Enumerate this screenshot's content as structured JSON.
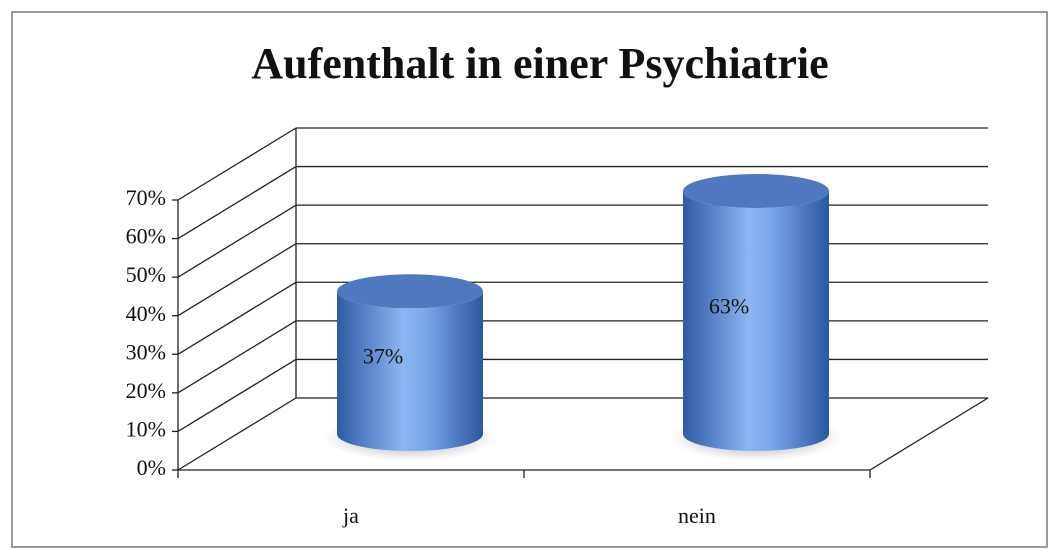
{
  "chart_data": {
    "type": "bar",
    "title": "Aufenthalt in einer Psychiatrie",
    "categories": [
      "ja",
      "nein"
    ],
    "values": [
      37,
      63
    ],
    "value_labels": [
      "37%",
      "63%"
    ],
    "color": "#5b8fd6",
    "ylim": [
      0,
      70
    ],
    "yticks": [
      {
        "value": 0,
        "label": "0%"
      },
      {
        "value": 10,
        "label": "10%"
      },
      {
        "value": 20,
        "label": "20%"
      },
      {
        "value": 30,
        "label": "30%"
      },
      {
        "value": 40,
        "label": "40%"
      },
      {
        "value": 50,
        "label": "50%"
      },
      {
        "value": 60,
        "label": "60%"
      },
      {
        "value": 70,
        "label": "70%"
      }
    ],
    "grid": true
  }
}
